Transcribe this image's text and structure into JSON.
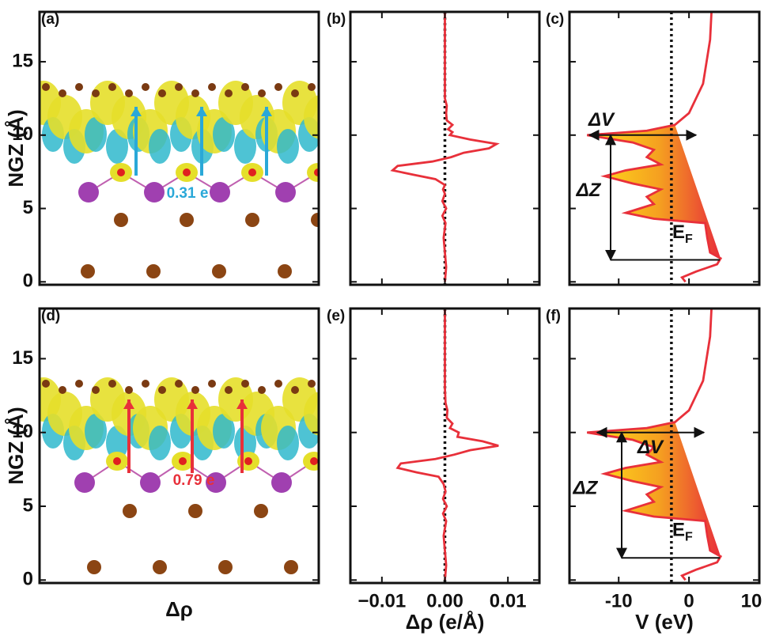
{
  "chart_data": [
    {
      "type": "structure",
      "panel_label": "(a)",
      "ylabel": "NGZ (Å)",
      "ylim": [
        -0.2,
        18.4
      ],
      "yticks": [
        0,
        5,
        10,
        15
      ],
      "annotation": "0.31 e",
      "annotation_color": "#2aa8d8"
    },
    {
      "type": "line",
      "panel_label": "(b)",
      "color": "#e8303a",
      "ylim": [
        -0.2,
        18.4
      ],
      "yticks": [
        0,
        5,
        10,
        15
      ],
      "xlim": [
        -0.015,
        0.015
      ],
      "xticks": [
        -0.01,
        0,
        0.01
      ],
      "vline": 0,
      "y": [
        0,
        1,
        2,
        3,
        4,
        4.5,
        5,
        5.5,
        6,
        6.3,
        6.6,
        7,
        7.3,
        7.6,
        7.9,
        8.2,
        8.5,
        8.8,
        9.1,
        9.4,
        9.7,
        10,
        10.2,
        10.4,
        10.7,
        11,
        11.5,
        12,
        12.5,
        14,
        18.4
      ],
      "x": [
        0,
        0.0002,
        0,
        -0.0002,
        0.0001,
        -0.0004,
        0.0002,
        -0.0004,
        0,
        -0.0003,
        0,
        -0.0015,
        -0.005,
        -0.0083,
        -0.0075,
        -0.002,
        0.001,
        0.003,
        0.007,
        0.0082,
        0.004,
        0.0008,
        0.0012,
        0.0005,
        0.0012,
        0.0003,
        0.0002,
        0.0003,
        0,
        0,
        0
      ]
    },
    {
      "type": "potential",
      "panel_label": "(c)",
      "color": "#e8303a",
      "ylim": [
        -0.2,
        18.4
      ],
      "yticks": [
        0,
        5,
        10,
        15
      ],
      "xlim": [
        -17,
        10
      ],
      "xticks": [
        -10,
        0,
        10
      ],
      "vline": -2.5,
      "dv_label": "ΔV",
      "dz_label": "ΔZ",
      "ef_label": "E",
      "ef_sub": "F",
      "y": [
        0,
        0.3,
        0.7,
        1.2,
        1.6,
        2,
        3,
        4,
        4.3,
        4.7,
        5.3,
        5.8,
        6.3,
        6.7,
        7.2,
        7.6,
        8,
        8.5,
        9,
        9.5,
        10,
        10.3,
        10.7,
        11.5,
        12.5,
        13.5,
        15,
        16.5,
        18.4
      ],
      "x": [
        -0.5,
        -1,
        1,
        4,
        4.5,
        3,
        2.6,
        2.3,
        -5,
        -9,
        -5,
        -6,
        -4,
        -8,
        -12,
        -9,
        -4,
        -6,
        -5,
        -8,
        -14.5,
        -6,
        -2,
        0,
        1,
        2,
        2.5,
        3,
        3.2
      ]
    },
    {
      "type": "structure",
      "panel_label": "(d)",
      "ylabel": "NGZ (Å)",
      "xlabel": "Δρ",
      "ylim": [
        -0.2,
        18.4
      ],
      "yticks": [
        0,
        5,
        10,
        15
      ],
      "annotation": "0.79 e",
      "annotation_color": "#e8303a"
    },
    {
      "type": "line",
      "panel_label": "(e)",
      "xlabel": "Δρ (e/Å)",
      "color": "#e8303a",
      "ylim": [
        -0.2,
        18.4
      ],
      "yticks": [
        0,
        5,
        10,
        15
      ],
      "xlim": [
        -0.015,
        0.015
      ],
      "xticks": [
        {
          "value": -0.01,
          "label": "−0.01"
        },
        {
          "value": 0,
          "label": "0.00"
        },
        {
          "value": 0.01,
          "label": "0.01"
        }
      ],
      "vline": 0,
      "y": [
        0,
        1,
        2,
        3,
        4,
        4.5,
        5,
        5.5,
        6,
        6.5,
        7,
        7.3,
        7.6,
        7.9,
        8.2,
        8.5,
        8.8,
        9.1,
        9.4,
        9.7,
        10,
        10.3,
        10.6,
        11,
        11.5,
        12,
        13,
        18.4
      ],
      "x": [
        0,
        0.0002,
        0,
        -0.0002,
        0.0002,
        -0.0003,
        0.0003,
        -0.0003,
        0.0001,
        -0.0002,
        -0.001,
        -0.0045,
        -0.0075,
        -0.007,
        -0.0015,
        0.0015,
        0.004,
        0.0085,
        0.006,
        0.002,
        0.0022,
        0.0008,
        0.0012,
        0.0003,
        0.0004,
        0.0001,
        0,
        0
      ]
    },
    {
      "type": "potential",
      "panel_label": "(f)",
      "xlabel": "V (eV)",
      "color": "#e8303a",
      "ylim": [
        -0.2,
        18.4
      ],
      "yticks": [
        0,
        5,
        10,
        15
      ],
      "xlim": [
        -17,
        10
      ],
      "xticks": [
        -10,
        0,
        10
      ],
      "vline": -2.5,
      "dv_label": "ΔV",
      "dz_label": "ΔZ",
      "ef_label": "E",
      "ef_sub": "F",
      "y": [
        0,
        0.3,
        0.7,
        1.2,
        1.6,
        2,
        3,
        4,
        4.3,
        4.7,
        5.3,
        5.8,
        6.3,
        6.7,
        7.2,
        7.6,
        8,
        8.5,
        9,
        9.5,
        10,
        10.3,
        10.7,
        11.5,
        12.5,
        13.5,
        15,
        16.5,
        18.4
      ],
      "x": [
        -0.5,
        -1,
        1,
        4,
        4.5,
        3,
        2.6,
        2.3,
        -5,
        -9,
        -5,
        -6,
        -4,
        -8,
        -12,
        -9,
        -4,
        -6,
        -5,
        -8,
        -14.5,
        -6,
        -2,
        0,
        1,
        2,
        2.5,
        3,
        3.2
      ]
    }
  ]
}
